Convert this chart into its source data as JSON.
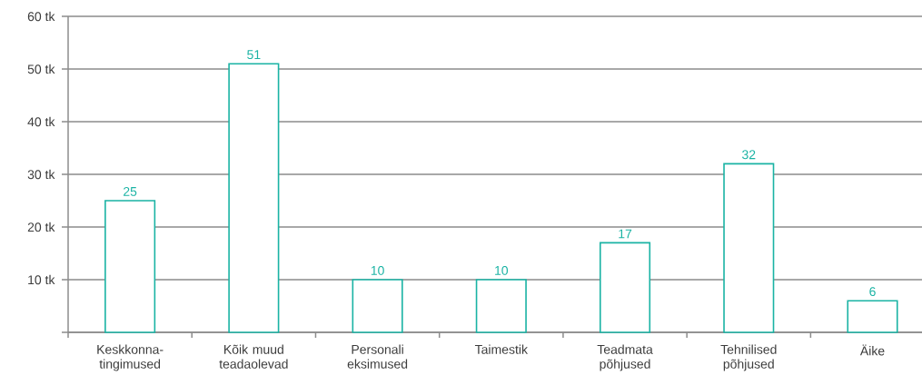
{
  "chart_data": {
    "type": "bar",
    "categories": [
      "Keskkonna-tingimused",
      "Kõik muud teadaolevad",
      "Personali eksimused",
      "Taimestik",
      "Teadmata põhjused",
      "Tehnilised põhjused",
      "Äike"
    ],
    "values": [
      25,
      51,
      10,
      10,
      17,
      32,
      6
    ],
    "color": "#1ab3a4",
    "ylim": [
      0,
      60
    ],
    "yticks": [
      {
        "value": 0,
        "label": null
      },
      {
        "value": 10,
        "label": "10 tk"
      },
      {
        "value": 20,
        "label": "20 tk"
      },
      {
        "value": 30,
        "label": "30 tk"
      },
      {
        "value": 40,
        "label": "40 tk"
      },
      {
        "value": 50,
        "label": "50 tk"
      },
      {
        "value": 60,
        "label": "60 tk"
      }
    ],
    "grid": "y",
    "data_labels": true
  }
}
